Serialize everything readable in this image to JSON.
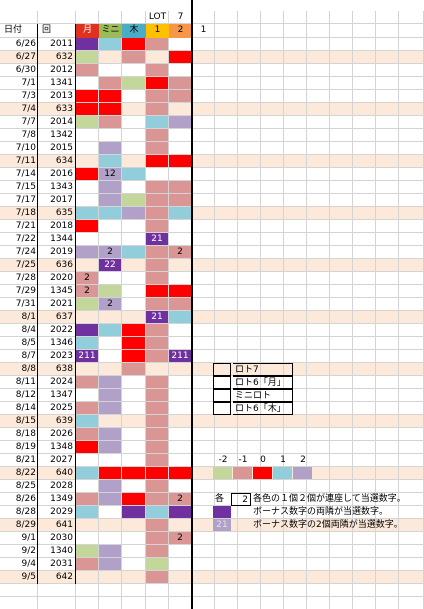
{
  "header": {
    "top": [
      "LOT",
      "7"
    ],
    "columns": [
      "日付",
      "回",
      "月",
      "ミニ",
      "木",
      "1",
      "2",
      "1"
    ],
    "column_colors": [
      null,
      null,
      "#e0301e",
      "#9bbb59",
      "#4bacc6",
      "#ffc000",
      "#f79646",
      null
    ]
  },
  "rows": [
    {
      "date": "6/26",
      "number": "2011",
      "cells": [
        {
          "color": "#7030a0"
        },
        {
          "color": "#92cddc"
        },
        {
          "color": "#ff0000"
        },
        {
          "color": "#da9694"
        },
        null
      ]
    },
    {
      "date": "6/27",
      "number": "632",
      "row_color": "#fde9d9",
      "cells": [
        {
          "color": "#c4d79b"
        },
        null,
        {
          "color": "#da9694"
        },
        null,
        {
          "color": "#ff0000"
        }
      ]
    },
    {
      "date": "6/30",
      "number": "2012",
      "cells": [
        {
          "color": "#da9694"
        },
        null,
        null,
        {
          "color": "#da9694"
        },
        null
      ]
    },
    {
      "date": "7/1",
      "number": "1341",
      "cells": [
        null,
        {
          "color": "#da9694"
        },
        {
          "color": "#c4d79b"
        },
        {
          "color": "#ff0000"
        },
        {
          "color": "#da9694"
        }
      ]
    },
    {
      "date": "7/3",
      "number": "2013",
      "cells": [
        {
          "color": "#ff0000"
        },
        {
          "color": "#ff0000"
        },
        null,
        {
          "color": "#da9694"
        },
        {
          "color": "#da9694"
        }
      ]
    },
    {
      "date": "7/4",
      "number": "633",
      "row_color": "#fde9d9",
      "cells": [
        {
          "color": "#ff0000"
        },
        {
          "color": "#ff0000"
        },
        null,
        {
          "color": "#da9694"
        },
        null
      ]
    },
    {
      "date": "7/7",
      "number": "2014",
      "cells": [
        {
          "color": "#c4d79b"
        },
        {
          "color": "#da9694"
        },
        null,
        {
          "color": "#92cddc"
        },
        {
          "color": "#b1a0c7"
        }
      ]
    },
    {
      "date": "7/8",
      "number": "1342",
      "cells": [
        null,
        null,
        null,
        {
          "color": "#da9694"
        },
        null
      ]
    },
    {
      "date": "7/10",
      "number": "2015",
      "cells": [
        null,
        {
          "color": "#b1a0c7"
        },
        null,
        {
          "color": "#da9694"
        },
        null
      ]
    },
    {
      "date": "7/11",
      "number": "634",
      "row_color": "#fde9d9",
      "cells": [
        null,
        {
          "color": "#92cddc"
        },
        null,
        {
          "color": "#ff0000"
        },
        {
          "color": "#ff0000"
        }
      ]
    },
    {
      "date": "7/14",
      "number": "2016",
      "cells": [
        {
          "color": "#ff0000"
        },
        {
          "color": "#b1a0c7",
          "text": "12"
        },
        {
          "color": "#92cddc"
        },
        null,
        null
      ]
    },
    {
      "date": "7/15",
      "number": "1343",
      "cells": [
        null,
        {
          "color": "#b1a0c7"
        },
        null,
        {
          "color": "#da9694"
        },
        {
          "color": "#da9694"
        }
      ]
    },
    {
      "date": "7/17",
      "number": "2017",
      "cells": [
        null,
        {
          "color": "#b1a0c7"
        },
        {
          "color": "#c4d79b"
        },
        {
          "color": "#da9694"
        },
        {
          "color": "#da9694"
        }
      ]
    },
    {
      "date": "7/18",
      "number": "635",
      "row_color": "#fde9d9",
      "cells": [
        {
          "color": "#92cddc"
        },
        {
          "color": "#92cddc"
        },
        {
          "color": "#b1a0c7"
        },
        {
          "color": "#da9694"
        },
        {
          "color": "#92cddc"
        }
      ]
    },
    {
      "date": "7/21",
      "number": "2018",
      "cells": [
        {
          "color": "#ff0000"
        },
        null,
        null,
        {
          "color": "#da9694"
        },
        null
      ]
    },
    {
      "date": "7/22",
      "number": "1344",
      "cells": [
        null,
        null,
        null,
        {
          "color": "#7030a0",
          "text": "21"
        },
        null
      ]
    },
    {
      "date": "7/24",
      "number": "2019",
      "cells": [
        {
          "color": "#b1a0c7"
        },
        {
          "color": "#b1a0c7",
          "text": "2"
        },
        {
          "color": "#92cddc"
        },
        {
          "color": "#da9694"
        },
        {
          "color": "#da9694",
          "text": "2"
        }
      ]
    },
    {
      "date": "7/25",
      "number": "636",
      "row_color": "#fde9d9",
      "cells": [
        null,
        {
          "color": "#7030a0",
          "text": "22"
        },
        null,
        {
          "color": "#da9694"
        },
        null
      ]
    },
    {
      "date": "7/28",
      "number": "2020",
      "cells": [
        {
          "color": "#da9694",
          "text": "2"
        },
        null,
        null,
        {
          "color": "#da9694"
        },
        null
      ]
    },
    {
      "date": "7/29",
      "number": "1345",
      "cells": [
        {
          "color": "#da9694",
          "text": "2"
        },
        {
          "color": "#c4d79b"
        },
        null,
        {
          "color": "#ff0000"
        },
        {
          "color": "#ff0000"
        }
      ]
    },
    {
      "date": "7/31",
      "number": "2021",
      "cells": [
        {
          "color": "#c4d79b"
        },
        {
          "color": "#b1a0c7",
          "text": "2"
        },
        null,
        {
          "color": "#da9694"
        },
        {
          "color": "#da9694"
        }
      ]
    },
    {
      "date": "8/1",
      "number": "637",
      "row_color": "#fde9d9",
      "cells": [
        null,
        null,
        null,
        {
          "color": "#7030a0",
          "text": "21"
        },
        {
          "color": "#92cddc"
        }
      ]
    },
    {
      "date": "8/4",
      "number": "2022",
      "cells": [
        {
          "color": "#7030a0"
        },
        {
          "color": "#92cddc"
        },
        {
          "color": "#ff0000"
        },
        {
          "color": "#da9694"
        },
        null
      ]
    },
    {
      "date": "8/5",
      "number": "1346",
      "cells": [
        {
          "color": "#92cddc"
        },
        null,
        {
          "color": "#ff0000"
        },
        {
          "color": "#da9694"
        },
        null
      ]
    },
    {
      "date": "8/7",
      "number": "2023",
      "cells": [
        {
          "color": "#7030a0",
          "text": "211"
        },
        null,
        {
          "color": "#ff0000"
        },
        {
          "color": "#da9694"
        },
        {
          "color": "#7030a0",
          "text": "211"
        }
      ]
    },
    {
      "date": "8/8",
      "number": "638",
      "row_color": "#fde9d9",
      "cells": [
        null,
        null,
        {
          "color": "#da9694"
        },
        null,
        null
      ]
    },
    {
      "date": "8/11",
      "number": "2024",
      "cells": [
        {
          "color": "#da9694"
        },
        {
          "color": "#b1a0c7"
        },
        null,
        {
          "color": "#da9694"
        },
        null
      ]
    },
    {
      "date": "8/12",
      "number": "1347",
      "cells": [
        null,
        {
          "color": "#b1a0c7"
        },
        null,
        {
          "color": "#da9694"
        },
        null
      ]
    },
    {
      "date": "8/14",
      "number": "2025",
      "cells": [
        {
          "color": "#da9694"
        },
        {
          "color": "#b1a0c7"
        },
        null,
        {
          "color": "#da9694"
        },
        null
      ]
    },
    {
      "date": "8/15",
      "number": "639",
      "row_color": "#fde9d9",
      "cells": [
        {
          "color": "#92cddc"
        },
        null,
        null,
        {
          "color": "#da9694"
        },
        null
      ]
    },
    {
      "date": "8/18",
      "number": "2026",
      "cells": [
        {
          "color": "#da9694"
        },
        {
          "color": "#b1a0c7"
        },
        null,
        {
          "color": "#da9694"
        },
        null
      ]
    },
    {
      "date": "8/19",
      "number": "1348",
      "cells": [
        {
          "color": "#ff0000"
        },
        {
          "color": "#b1a0c7"
        },
        null,
        {
          "color": "#da9694"
        },
        null
      ]
    },
    {
      "date": "8/21",
      "number": "2027",
      "cells": [
        null,
        null,
        null,
        {
          "color": "#da9694"
        },
        null
      ]
    },
    {
      "date": "8/22",
      "number": "640",
      "row_color": "#fde9d9",
      "cells": [
        {
          "color": "#92cddc"
        },
        {
          "color": "#ff0000"
        },
        {
          "color": "#ff0000"
        },
        {
          "color": "#ff0000"
        },
        {
          "color": "#ff0000"
        }
      ]
    },
    {
      "date": "8/25",
      "number": "2028",
      "cells": [
        null,
        {
          "color": "#b1a0c7"
        },
        null,
        {
          "color": "#da9694"
        },
        null
      ]
    },
    {
      "date": "8/26",
      "number": "1349",
      "cells": [
        {
          "color": "#da9694"
        },
        {
          "color": "#b1a0c7"
        },
        {
          "color": "#ff0000"
        },
        {
          "color": "#da9694"
        },
        {
          "color": "#da9694",
          "text": "2"
        }
      ]
    },
    {
      "date": "8/28",
      "number": "2029",
      "cells": [
        {
          "color": "#92cddc"
        },
        null,
        {
          "color": "#7030a0"
        },
        {
          "color": "#92cddc"
        },
        {
          "color": "#7030a0"
        }
      ]
    },
    {
      "date": "8/29",
      "number": "641",
      "row_color": "#fde9d9",
      "cells": [
        null,
        null,
        null,
        {
          "color": "#da9694"
        },
        null
      ]
    },
    {
      "date": "9/1",
      "number": "2030",
      "cells": [
        null,
        null,
        null,
        {
          "color": "#da9694"
        },
        {
          "color": "#da9694",
          "text": "2"
        }
      ]
    },
    {
      "date": "9/2",
      "number": "1340",
      "cells": [
        {
          "color": "#c4d79b"
        },
        {
          "color": "#b1a0c7"
        },
        null,
        {
          "color": "#da9694"
        },
        null
      ]
    },
    {
      "date": "9/4",
      "number": "2031",
      "cells": [
        {
          "color": "#da9694"
        },
        {
          "color": "#b1a0c7"
        },
        null,
        {
          "color": "#c4d79b"
        },
        null
      ]
    },
    {
      "date": "9/5",
      "number": "642",
      "row_color": "#fde9d9",
      "cells": [
        null,
        null,
        null,
        {
          "color": "#da9694"
        },
        null
      ]
    }
  ],
  "legend": [
    {
      "label": "ロト7",
      "color": "#fde9d9"
    },
    {
      "label": "ロト6「月」",
      "color": "#ffffff"
    },
    {
      "label": "ミニロト",
      "color": "#ffffff"
    },
    {
      "label": "ロト6「木」",
      "color": "#ffffff"
    }
  ],
  "scale": [
    {
      "label": "-2",
      "color": "#c4d79b"
    },
    {
      "label": "-1",
      "color": "#da9694"
    },
    {
      "label": "0",
      "color": "#ff0000"
    },
    {
      "label": "1",
      "color": "#92cddc"
    },
    {
      "label": "2",
      "color": "#b1a0c7"
    }
  ],
  "notes": [
    {
      "prefix": "各",
      "box": "2",
      "text": "各色の１個２個が連座して当選数字。"
    },
    {
      "color": "#7030a0",
      "text": "ボーナス数字の両隣が当選数字。"
    },
    {
      "color": "#b1a0c7",
      "box": "21",
      "text": "ボーナス数字の2個両隣が当選数字。"
    }
  ]
}
